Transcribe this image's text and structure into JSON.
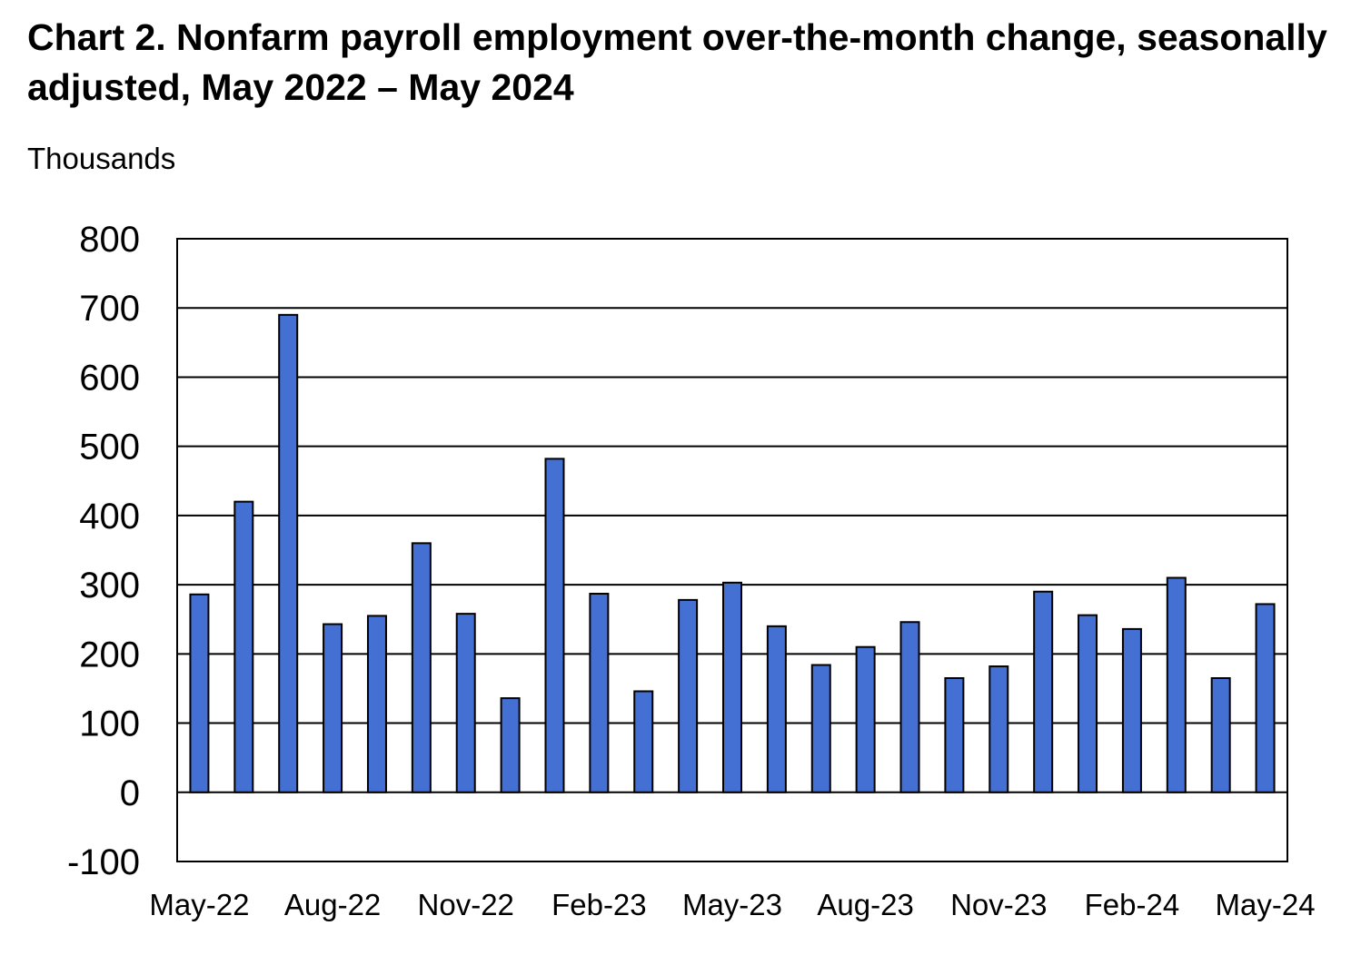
{
  "chart_data": {
    "type": "bar",
    "title": "Chart 2. Nonfarm payroll employment over-the-month change, seasonally adjusted, May 2022 – May 2024",
    "ylabel": "Thousands",
    "xlabel": "",
    "ylim": [
      -100,
      800
    ],
    "yticks": [
      "800",
      "700",
      "600",
      "500",
      "400",
      "300",
      "200",
      "100",
      "0",
      "-100"
    ],
    "ytick_values": [
      800,
      700,
      600,
      500,
      400,
      300,
      200,
      100,
      0,
      -100
    ],
    "x_tick_labels": [
      "May-22",
      "Aug-22",
      "Nov-22",
      "Feb-23",
      "May-23",
      "Aug-23",
      "Nov-23",
      "Feb-24",
      "May-24"
    ],
    "x_tick_every": 3,
    "categories": [
      "May-22",
      "Jun-22",
      "Jul-22",
      "Aug-22",
      "Sep-22",
      "Oct-22",
      "Nov-22",
      "Dec-22",
      "Jan-23",
      "Feb-23",
      "Mar-23",
      "Apr-23",
      "May-23",
      "Jun-23",
      "Jul-23",
      "Aug-23",
      "Sep-23",
      "Oct-23",
      "Nov-23",
      "Dec-23",
      "Jan-24",
      "Feb-24",
      "Mar-24",
      "Apr-24",
      "May-24"
    ],
    "values": [
      286,
      420,
      690,
      243,
      255,
      360,
      258,
      136,
      482,
      287,
      146,
      278,
      303,
      240,
      184,
      210,
      246,
      165,
      182,
      290,
      256,
      236,
      310,
      165,
      272
    ],
    "grid": true,
    "legend": "none",
    "bar_color": "#4470d4",
    "bar_edge_color": "#000000"
  }
}
